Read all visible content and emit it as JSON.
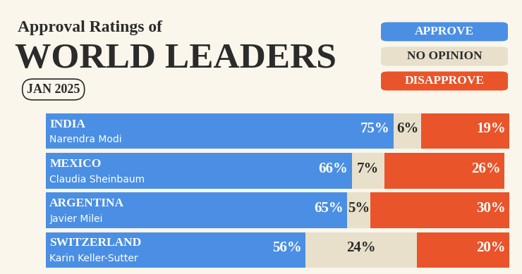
{
  "chart_data": {
    "type": "bar",
    "orientation": "horizontal",
    "stacked": true,
    "data_labels": true,
    "tick_labels": false,
    "legend": "upper right",
    "pretitle": "Approval Ratings of",
    "title": "WORLD LEADERS",
    "subtitle": "JAN 2025",
    "categories": [
      "INDIA",
      "MEXICO",
      "ARGENTINA",
      "SWITZERLAND"
    ],
    "leaders": [
      "Narendra Modi",
      "Claudia Sheinbaum",
      "Javier Milei",
      "Karin Keller-Sutter"
    ],
    "xlim": [
      0,
      100
    ],
    "series": [
      {
        "name": "APPROVE",
        "color": "#4a8fe3",
        "values": [
          75,
          66,
          65,
          56
        ],
        "value_labels": [
          "75%",
          "66%",
          "65%",
          "56%"
        ]
      },
      {
        "name": "NO OPINION",
        "color": "#e8e0cb",
        "values": [
          6,
          7,
          5,
          24
        ],
        "value_labels": [
          "6%",
          "7%",
          "5%",
          "24%"
        ]
      },
      {
        "name": "DISAPPROVE",
        "color": "#e9542a",
        "values": [
          19,
          26,
          30,
          20
        ],
        "value_labels": [
          "19%",
          "26%",
          "30%",
          "20%"
        ]
      }
    ]
  }
}
